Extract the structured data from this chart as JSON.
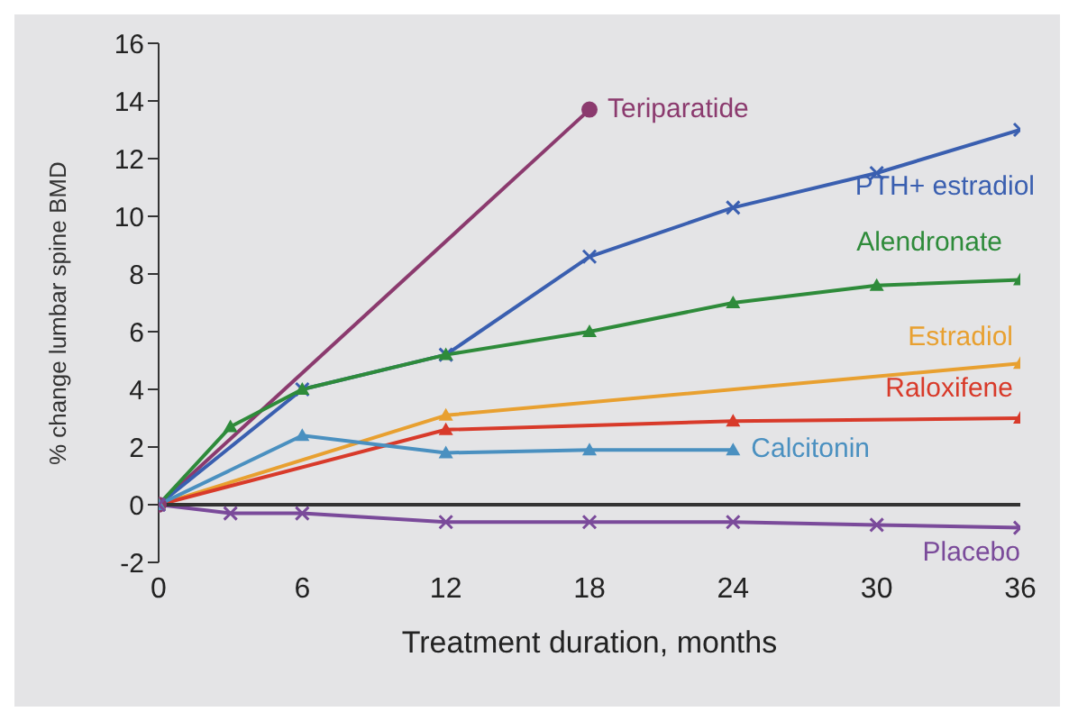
{
  "chart_data": {
    "type": "line",
    "xlabel": "Treatment duration, months",
    "ylabel": "% change lumbar spine BMD",
    "xlim": [
      0,
      36
    ],
    "xticks": [
      0,
      6,
      12,
      18,
      24,
      30,
      36
    ],
    "ylim": [
      -2,
      16
    ],
    "yticks": [
      -2,
      0,
      2,
      4,
      6,
      8,
      10,
      12,
      14,
      16
    ],
    "grid": false,
    "legend": false,
    "series": [
      {
        "name": "Teriparatide",
        "color": "#8b3a6e",
        "marker": "circle",
        "x": [
          0,
          18
        ],
        "values": [
          0,
          13.7
        ]
      },
      {
        "name": "PTH+ estradiol",
        "color": "#3a5fb0",
        "marker": "cross",
        "x": [
          0,
          6,
          12,
          18,
          24,
          30,
          36
        ],
        "values": [
          0,
          4.0,
          5.2,
          8.6,
          10.3,
          11.5,
          13.0
        ]
      },
      {
        "name": "Alendronate",
        "color": "#2e8b3a",
        "marker": "triangle",
        "x": [
          0,
          3,
          6,
          12,
          18,
          24,
          30,
          36
        ],
        "values": [
          0,
          2.7,
          4.0,
          5.2,
          6.0,
          7.0,
          7.6,
          7.8
        ]
      },
      {
        "name": "Estradiol",
        "color": "#e8a030",
        "marker": "triangle",
        "x": [
          0,
          12,
          36
        ],
        "values": [
          0,
          3.1,
          4.9
        ]
      },
      {
        "name": "Raloxifene",
        "color": "#d83a2a",
        "marker": "triangle",
        "x": [
          0,
          12,
          24,
          36
        ],
        "values": [
          0,
          2.6,
          2.9,
          3.0
        ]
      },
      {
        "name": "Calcitonin",
        "color": "#4a90c0",
        "marker": "triangle",
        "x": [
          0,
          6,
          12,
          18,
          24
        ],
        "values": [
          0,
          2.4,
          1.8,
          1.9,
          1.9
        ]
      },
      {
        "name": "Placebo",
        "color": "#7a4a9a",
        "marker": "cross",
        "x": [
          0,
          3,
          6,
          12,
          18,
          24,
          30,
          36
        ],
        "values": [
          0,
          -0.3,
          -0.3,
          -0.6,
          -0.6,
          -0.6,
          -0.7,
          -0.8
        ]
      }
    ]
  }
}
